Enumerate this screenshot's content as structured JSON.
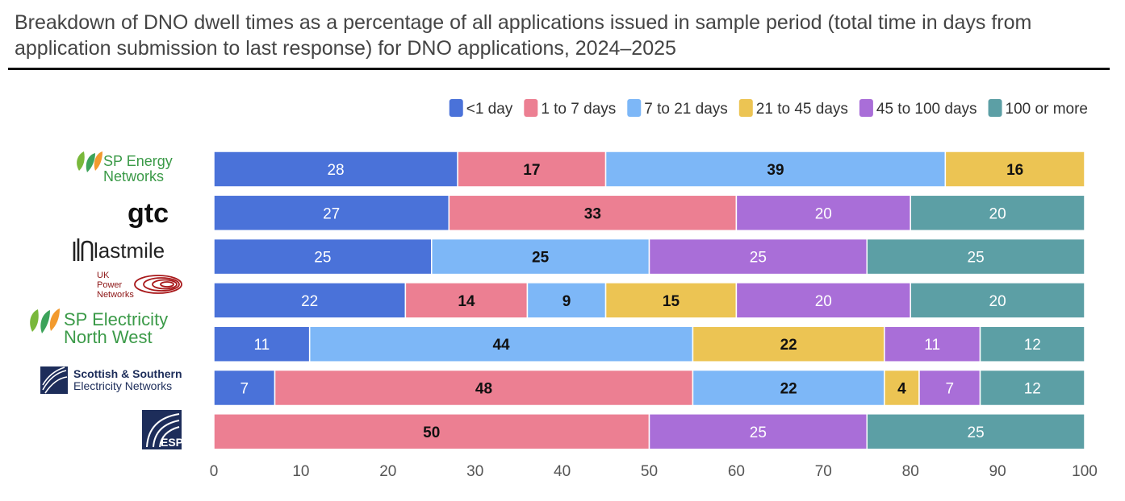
{
  "title": "Breakdown of DNO dwell times as a percentage of all applications issued in sample period (total time in days from application submission to last response) for DNO applications, 2024–2025",
  "chart_data": {
    "type": "bar",
    "orientation": "horizontal",
    "stacked": true,
    "xlim": [
      0,
      100
    ],
    "xticks": [
      0,
      10,
      20,
      30,
      40,
      50,
      60,
      70,
      80,
      90,
      100
    ],
    "grid": false,
    "legend_position": "top-right",
    "categories": [
      "SP Energy Networks",
      "gtc",
      "lastmile",
      "UK Power Networks",
      "SP Electricity North West",
      "Scottish & Southern Electricity Networks",
      "ESP"
    ],
    "series": [
      {
        "name": "<1 day",
        "color": "#4a72d9",
        "label_color": "#ffffff",
        "values": [
          28,
          27,
          25,
          22,
          11,
          7,
          0
        ]
      },
      {
        "name": "1 to 7 days",
        "color": "#ec7f92",
        "label_color": "#111111",
        "values": [
          17,
          33,
          0,
          14,
          0,
          48,
          50
        ]
      },
      {
        "name": "7 to 21 days",
        "color": "#7db7f7",
        "label_color": "#111111",
        "values": [
          39,
          0,
          25,
          9,
          44,
          22,
          0
        ]
      },
      {
        "name": "21 to 45 days",
        "color": "#ecc453",
        "label_color": "#111111",
        "values": [
          16,
          0,
          0,
          15,
          22,
          4,
          0
        ]
      },
      {
        "name": "45 to 100 days",
        "color": "#a96ed8",
        "label_color": "#ffffff",
        "values": [
          0,
          20,
          25,
          20,
          11,
          7,
          25
        ]
      },
      {
        "name": "100 or more",
        "color": "#5c9fa5",
        "label_color": "#ffffff",
        "values": [
          0,
          20,
          25,
          20,
          12,
          12,
          25
        ]
      }
    ]
  },
  "logos": {
    "sp_energy": [
      "SP Energy",
      "Networks"
    ],
    "gtc": "gtc",
    "lastmile": "lastmile",
    "ukpn": [
      "UK",
      "Power",
      "Networks"
    ],
    "sp_north_west": [
      "SP Electricity",
      "North West"
    ],
    "ssen": [
      "Scottish & Southern",
      "Electricity Networks"
    ],
    "esp": "ESP"
  }
}
